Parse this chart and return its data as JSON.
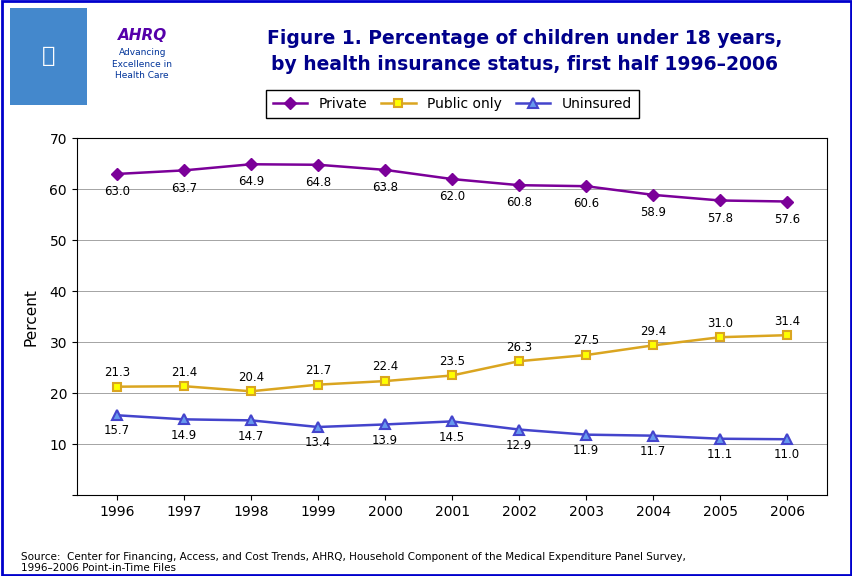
{
  "years": [
    1996,
    1997,
    1998,
    1999,
    2000,
    2001,
    2002,
    2003,
    2004,
    2005,
    2006
  ],
  "private": [
    63.0,
    63.7,
    64.9,
    64.8,
    63.8,
    62.0,
    60.8,
    60.6,
    58.9,
    57.8,
    57.6
  ],
  "public_only": [
    21.3,
    21.4,
    20.4,
    21.7,
    22.4,
    23.5,
    26.3,
    27.5,
    29.4,
    31.0,
    31.4
  ],
  "uninsured": [
    15.7,
    14.9,
    14.7,
    13.4,
    13.9,
    14.5,
    12.9,
    11.9,
    11.7,
    11.1,
    11.0
  ],
  "private_color": "#7B0099",
  "public_color": "#DAA520",
  "uninsured_color": "#4444CC",
  "title_line1": "Figure 1. Percentage of children under 18 years,",
  "title_line2": "by health insurance status, first half 1996–2006",
  "ylabel": "Percent",
  "ylim": [
    0,
    70
  ],
  "yticks": [
    0,
    10,
    20,
    30,
    40,
    50,
    60,
    70
  ],
  "source_text": "Source:  Center for Financing, Access, and Cost Trends, AHRQ, Household Component of the Medical Expenditure Panel Survey,\n1996–2006 Point-in-Time Files",
  "legend_labels": [
    "Private",
    "Public only",
    "Uninsured"
  ],
  "header_bar_color": "#0000AA",
  "outer_border_color": "#0000CC",
  "title_color": "#00008B",
  "logo_left_color": "#4488CC",
  "logo_right_bg": "white"
}
